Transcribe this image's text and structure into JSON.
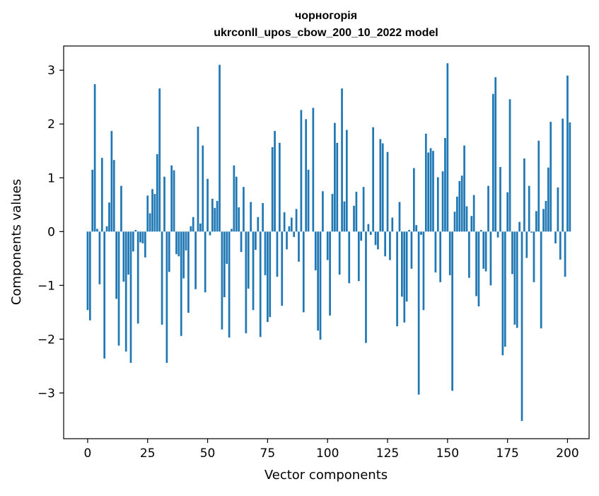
{
  "chart_data": {
    "type": "bar",
    "title_line1": "чорногорія",
    "title_line2": "ukrconll_upos_cbow_200_10_2022 model",
    "xlabel": "Vector components",
    "ylabel": "Components values",
    "xlim": [
      -10,
      209
    ],
    "ylim": [
      -3.85,
      3.45
    ],
    "xticks": [
      0,
      25,
      50,
      75,
      100,
      125,
      150,
      175,
      200
    ],
    "yticks": [
      -3,
      -2,
      -1,
      0,
      1,
      2,
      3
    ],
    "xtick_labels": [
      "0",
      "25",
      "50",
      "75",
      "100",
      "125",
      "150",
      "175",
      "200"
    ],
    "ytick_labels": [
      "−3",
      "−2",
      "−1",
      "0",
      "1",
      "2",
      "3"
    ],
    "grid": false,
    "bar_color": "#1f77b4",
    "values": [
      -1.46,
      -1.65,
      1.15,
      2.74,
      0.05,
      -0.98,
      1.37,
      -2.36,
      0.1,
      0.54,
      1.87,
      1.33,
      -1.25,
      -2.12,
      0.85,
      -0.93,
      -2.23,
      -0.8,
      -2.44,
      -0.37,
      0.03,
      -1.71,
      -0.2,
      -0.22,
      -0.48,
      0.67,
      0.34,
      0.79,
      0.7,
      1.44,
      2.66,
      -1.73,
      1.02,
      -2.44,
      -0.75,
      1.23,
      1.14,
      -0.42,
      -0.46,
      -1.94,
      -0.87,
      -0.35,
      -1.51,
      0.1,
      0.27,
      -1.07,
      1.95,
      0.15,
      1.6,
      -1.13,
      0.98,
      -0.07,
      0.61,
      0.44,
      0.57,
      3.1,
      -1.82,
      -1.22,
      -0.6,
      -1.97,
      0.05,
      1.23,
      1.02,
      0.45,
      -0.38,
      0.83,
      -1.89,
      -1.06,
      0.55,
      -1.46,
      -0.34,
      0.27,
      -1.96,
      0.53,
      -0.81,
      -1.68,
      -1.59,
      1.57,
      1.87,
      -0.84,
      1.65,
      -1.38,
      0.36,
      -0.33,
      0.1,
      0.26,
      -0.1,
      0.42,
      -0.56,
      2.26,
      -1.5,
      2.09,
      1.15,
      0.0,
      2.3,
      -0.72,
      -1.84,
      -2.01,
      0.75,
      0.0,
      -0.53,
      -1.56,
      0.7,
      2.02,
      1.65,
      -0.8,
      2.66,
      0.56,
      1.89,
      -0.96,
      0.0,
      0.48,
      0.74,
      -0.92,
      -0.17,
      0.83,
      -2.07,
      0.14,
      -0.06,
      1.94,
      -0.25,
      -0.33,
      1.72,
      1.64,
      -0.46,
      1.48,
      -0.53,
      0.26,
      0.0,
      -1.76,
      0.55,
      -1.21,
      -1.69,
      -1.3,
      0.03,
      -0.69,
      1.18,
      0.12,
      -3.03,
      -0.06,
      -1.46,
      1.82,
      1.47,
      1.55,
      1.5,
      -0.76,
      1.01,
      -0.94,
      1.12,
      1.74,
      3.13,
      -0.81,
      -2.96,
      0.37,
      0.65,
      0.94,
      1.04,
      1.6,
      0.47,
      -0.86,
      0.29,
      0.68,
      -1.2,
      -1.39,
      0.03,
      -0.69,
      -0.74,
      0.85,
      -1.0,
      2.56,
      2.87,
      -0.11,
      1.2,
      -2.3,
      -2.14,
      0.73,
      2.46,
      -0.79,
      -1.73,
      -1.79,
      0.18,
      -3.52,
      1.36,
      -0.49,
      0.85,
      -0.02,
      -0.94,
      0.38,
      1.69,
      -1.8,
      0.42,
      0.57,
      1.19,
      2.04,
      0.0,
      -0.22,
      0.82,
      -0.52,
      2.1,
      -0.84,
      2.9,
      2.03
    ]
  }
}
